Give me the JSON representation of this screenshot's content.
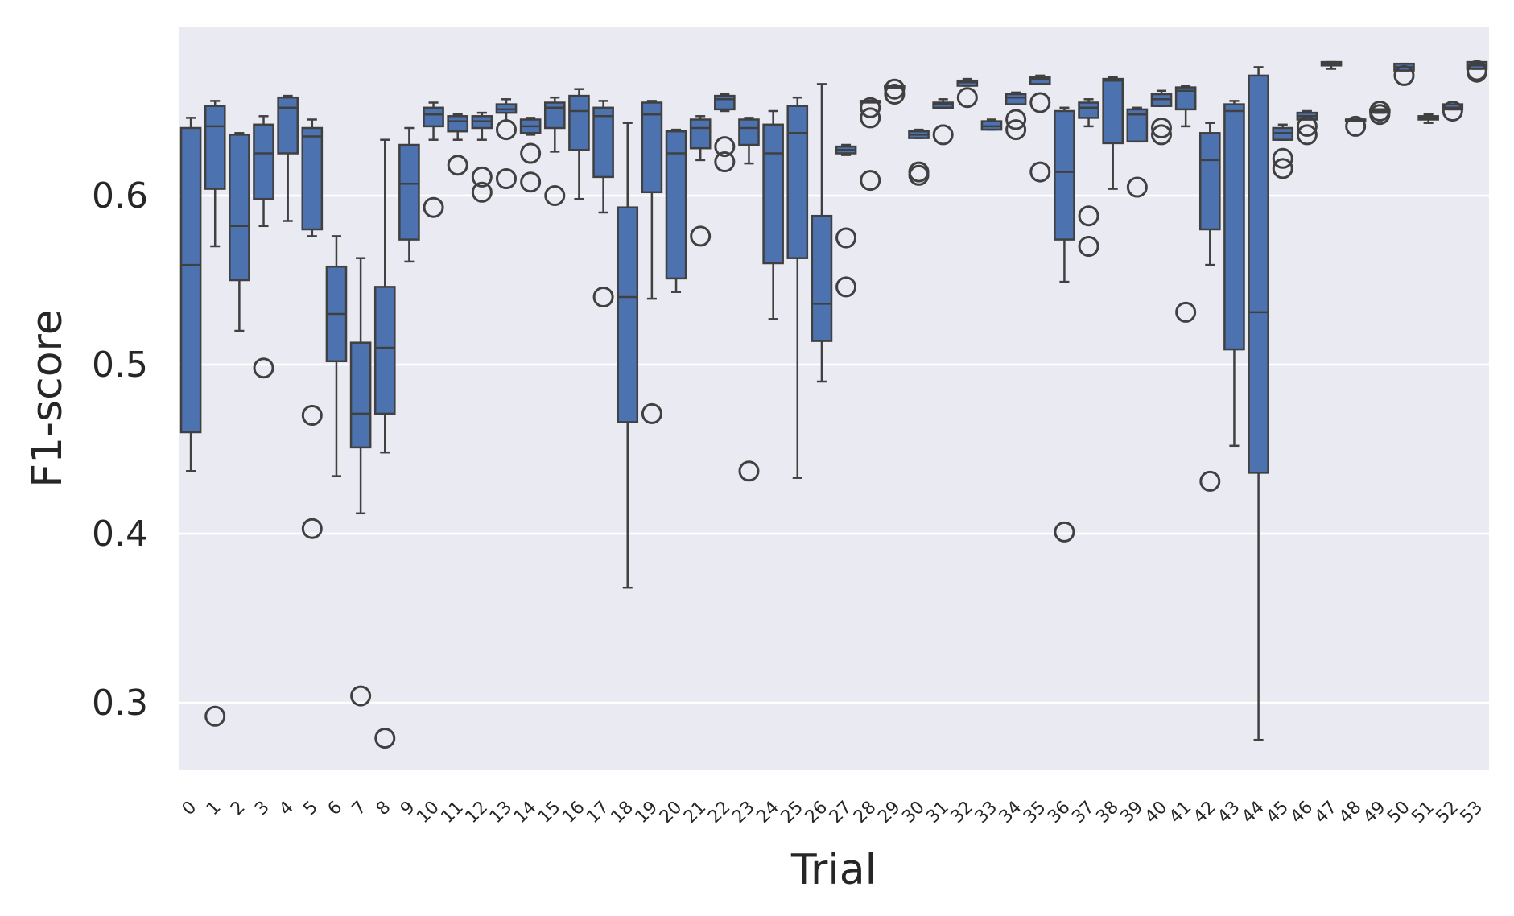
{
  "chart_data": {
    "type": "box",
    "title": "",
    "xlabel": "Trial",
    "ylabel": "F1-score",
    "ylim": [
      0.26,
      0.7
    ],
    "yticks": [
      0.3,
      0.4,
      0.5,
      0.6
    ],
    "ytick_labels": [
      "0.3",
      "0.4",
      "0.5",
      "0.6"
    ],
    "grid": "horizontal",
    "colors": {
      "background": "#eaeaf2",
      "box_fill": "#4c72b0",
      "line": "#404040",
      "grid": "#ffffff"
    },
    "categories": [
      "0",
      "1",
      "2",
      "3",
      "4",
      "5",
      "6",
      "7",
      "8",
      "9",
      "10",
      "11",
      "12",
      "13",
      "14",
      "15",
      "16",
      "17",
      "18",
      "19",
      "20",
      "21",
      "22",
      "23",
      "24",
      "25",
      "26",
      "27",
      "28",
      "29",
      "30",
      "31",
      "32",
      "33",
      "34",
      "35",
      "36",
      "37",
      "38",
      "39",
      "40",
      "41",
      "42",
      "43",
      "44",
      "45",
      "46",
      "47",
      "48",
      "49",
      "50",
      "51",
      "52",
      "53"
    ],
    "boxes": [
      {
        "trial": "0",
        "whislo": 0.437,
        "q1": 0.46,
        "med": 0.559,
        "q3": 0.64,
        "whishi": 0.646,
        "fliers": []
      },
      {
        "trial": "1",
        "whislo": 0.57,
        "q1": 0.604,
        "med": 0.641,
        "q3": 0.653,
        "whishi": 0.656,
        "fliers": [
          0.292
        ]
      },
      {
        "trial": "2",
        "whislo": 0.52,
        "q1": 0.55,
        "med": 0.582,
        "q3": 0.636,
        "whishi": 0.637,
        "fliers": []
      },
      {
        "trial": "3",
        "whislo": 0.582,
        "q1": 0.598,
        "med": 0.625,
        "q3": 0.642,
        "whishi": 0.647,
        "fliers": [
          0.498
        ]
      },
      {
        "trial": "4",
        "whislo": 0.585,
        "q1": 0.625,
        "med": 0.652,
        "q3": 0.658,
        "whishi": 0.659,
        "fliers": []
      },
      {
        "trial": "5",
        "whislo": 0.576,
        "q1": 0.58,
        "med": 0.635,
        "q3": 0.64,
        "whishi": 0.645,
        "fliers": [
          0.47,
          0.403
        ]
      },
      {
        "trial": "6",
        "whislo": 0.434,
        "q1": 0.502,
        "med": 0.53,
        "q3": 0.558,
        "whishi": 0.576,
        "fliers": []
      },
      {
        "trial": "7",
        "whislo": 0.412,
        "q1": 0.451,
        "med": 0.471,
        "q3": 0.513,
        "whishi": 0.563,
        "fliers": [
          0.304
        ]
      },
      {
        "trial": "8",
        "whislo": 0.448,
        "q1": 0.471,
        "med": 0.51,
        "q3": 0.546,
        "whishi": 0.633,
        "fliers": [
          0.279
        ]
      },
      {
        "trial": "9",
        "whislo": 0.561,
        "q1": 0.574,
        "med": 0.607,
        "q3": 0.63,
        "whishi": 0.64,
        "fliers": []
      },
      {
        "trial": "10",
        "whislo": 0.633,
        "q1": 0.641,
        "med": 0.648,
        "q3": 0.652,
        "whishi": 0.655,
        "fliers": [
          0.593
        ]
      },
      {
        "trial": "11",
        "whislo": 0.633,
        "q1": 0.638,
        "med": 0.644,
        "q3": 0.647,
        "whishi": 0.648,
        "fliers": [
          0.618
        ]
      },
      {
        "trial": "12",
        "whislo": 0.633,
        "q1": 0.64,
        "med": 0.644,
        "q3": 0.647,
        "whishi": 0.649,
        "fliers": [
          0.611,
          0.602
        ]
      },
      {
        "trial": "13",
        "whislo": 0.644,
        "q1": 0.649,
        "med": 0.651,
        "q3": 0.654,
        "whishi": 0.657,
        "fliers": [
          0.639,
          0.61
        ]
      },
      {
        "trial": "14",
        "whislo": 0.636,
        "q1": 0.637,
        "med": 0.641,
        "q3": 0.645,
        "whishi": 0.646,
        "fliers": [
          0.625,
          0.608
        ]
      },
      {
        "trial": "15",
        "whislo": 0.626,
        "q1": 0.64,
        "med": 0.652,
        "q3": 0.655,
        "whishi": 0.658,
        "fliers": [
          0.6
        ]
      },
      {
        "trial": "16",
        "whislo": 0.598,
        "q1": 0.627,
        "med": 0.65,
        "q3": 0.659,
        "whishi": 0.663,
        "fliers": []
      },
      {
        "trial": "17",
        "whislo": 0.59,
        "q1": 0.611,
        "med": 0.647,
        "q3": 0.652,
        "whishi": 0.656,
        "fliers": [
          0.54
        ]
      },
      {
        "trial": "18",
        "whislo": 0.368,
        "q1": 0.466,
        "med": 0.54,
        "q3": 0.593,
        "whishi": 0.643,
        "fliers": []
      },
      {
        "trial": "19",
        "whislo": 0.539,
        "q1": 0.602,
        "med": 0.648,
        "q3": 0.655,
        "whishi": 0.656,
        "fliers": [
          0.471
        ]
      },
      {
        "trial": "20",
        "whislo": 0.543,
        "q1": 0.551,
        "med": 0.625,
        "q3": 0.638,
        "whishi": 0.639,
        "fliers": []
      },
      {
        "trial": "21",
        "whislo": 0.621,
        "q1": 0.628,
        "med": 0.64,
        "q3": 0.645,
        "whishi": 0.647,
        "fliers": [
          0.576
        ]
      },
      {
        "trial": "22",
        "whislo": 0.65,
        "q1": 0.651,
        "med": 0.657,
        "q3": 0.659,
        "whishi": 0.66,
        "fliers": [
          0.629,
          0.62
        ]
      },
      {
        "trial": "23",
        "whislo": 0.619,
        "q1": 0.63,
        "med": 0.64,
        "q3": 0.645,
        "whishi": 0.646,
        "fliers": [
          0.437
        ]
      },
      {
        "trial": "24",
        "whislo": 0.527,
        "q1": 0.56,
        "med": 0.625,
        "q3": 0.642,
        "whishi": 0.65,
        "fliers": []
      },
      {
        "trial": "25",
        "whislo": 0.433,
        "q1": 0.563,
        "med": 0.637,
        "q3": 0.653,
        "whishi": 0.658,
        "fliers": []
      },
      {
        "trial": "26",
        "whislo": 0.49,
        "q1": 0.514,
        "med": 0.536,
        "q3": 0.588,
        "whishi": 0.666,
        "fliers": []
      },
      {
        "trial": "27",
        "whislo": 0.624,
        "q1": 0.625,
        "med": 0.627,
        "q3": 0.629,
        "whishi": 0.63,
        "fliers": [
          0.575,
          0.546
        ]
      },
      {
        "trial": "28",
        "whislo": 0.656,
        "q1": 0.656,
        "med": 0.656,
        "q3": 0.656,
        "whishi": 0.656,
        "fliers": [
          0.652,
          0.646,
          0.609
        ]
      },
      {
        "trial": "29",
        "whislo": 0.664,
        "q1": 0.664,
        "med": 0.664,
        "q3": 0.665,
        "whishi": 0.665,
        "fliers": [
          0.66,
          0.663
        ]
      },
      {
        "trial": "30",
        "whislo": 0.634,
        "q1": 0.634,
        "med": 0.636,
        "q3": 0.638,
        "whishi": 0.639,
        "fliers": [
          0.614,
          0.612
        ]
      },
      {
        "trial": "31",
        "whislo": 0.652,
        "q1": 0.652,
        "med": 0.654,
        "q3": 0.655,
        "whishi": 0.657,
        "fliers": [
          0.636
        ]
      },
      {
        "trial": "32",
        "whislo": 0.665,
        "q1": 0.665,
        "med": 0.667,
        "q3": 0.668,
        "whishi": 0.669,
        "fliers": [
          0.658
        ]
      },
      {
        "trial": "33",
        "whislo": 0.639,
        "q1": 0.639,
        "med": 0.641,
        "q3": 0.644,
        "whishi": 0.645,
        "fliers": []
      },
      {
        "trial": "34",
        "whislo": 0.654,
        "q1": 0.654,
        "med": 0.658,
        "q3": 0.66,
        "whishi": 0.661,
        "fliers": [
          0.645,
          0.639
        ]
      },
      {
        "trial": "35",
        "whislo": 0.666,
        "q1": 0.666,
        "med": 0.669,
        "q3": 0.67,
        "whishi": 0.671,
        "fliers": [
          0.655,
          0.614
        ]
      },
      {
        "trial": "36",
        "whislo": 0.549,
        "q1": 0.574,
        "med": 0.614,
        "q3": 0.65,
        "whishi": 0.652,
        "fliers": [
          0.401
        ]
      },
      {
        "trial": "37",
        "whislo": 0.641,
        "q1": 0.646,
        "med": 0.652,
        "q3": 0.655,
        "whishi": 0.657,
        "fliers": [
          0.588,
          0.57
        ]
      },
      {
        "trial": "38",
        "whislo": 0.604,
        "q1": 0.631,
        "med": 0.668,
        "q3": 0.669,
        "whishi": 0.67,
        "fliers": []
      },
      {
        "trial": "39",
        "whislo": 0.632,
        "q1": 0.632,
        "med": 0.648,
        "q3": 0.651,
        "whishi": 0.652,
        "fliers": [
          0.605
        ]
      },
      {
        "trial": "40",
        "whislo": 0.653,
        "q1": 0.653,
        "med": 0.657,
        "q3": 0.66,
        "whishi": 0.662,
        "fliers": [
          0.64,
          0.636
        ]
      },
      {
        "trial": "41",
        "whislo": 0.641,
        "q1": 0.651,
        "med": 0.662,
        "q3": 0.664,
        "whishi": 0.665,
        "fliers": [
          0.531
        ]
      },
      {
        "trial": "42",
        "whislo": 0.559,
        "q1": 0.58,
        "med": 0.621,
        "q3": 0.637,
        "whishi": 0.643,
        "fliers": [
          0.431
        ]
      },
      {
        "trial": "43",
        "whislo": 0.452,
        "q1": 0.509,
        "med": 0.65,
        "q3": 0.654,
        "whishi": 0.656,
        "fliers": []
      },
      {
        "trial": "44",
        "whislo": 0.278,
        "q1": 0.436,
        "med": 0.531,
        "q3": 0.671,
        "whishi": 0.676,
        "fliers": []
      },
      {
        "trial": "45",
        "whislo": 0.633,
        "q1": 0.633,
        "med": 0.637,
        "q3": 0.64,
        "whishi": 0.642,
        "fliers": [
          0.622,
          0.616
        ]
      },
      {
        "trial": "46",
        "whislo": 0.645,
        "q1": 0.645,
        "med": 0.647,
        "q3": 0.649,
        "whishi": 0.65,
        "fliers": [
          0.641,
          0.636
        ]
      },
      {
        "trial": "47",
        "whislo": 0.675,
        "q1": 0.677,
        "med": 0.678,
        "q3": 0.679,
        "whishi": 0.679,
        "fliers": []
      },
      {
        "trial": "48",
        "whislo": 0.644,
        "q1": 0.644,
        "med": 0.645,
        "q3": 0.645,
        "whishi": 0.645,
        "fliers": [
          0.641
        ]
      },
      {
        "trial": "49",
        "whislo": 0.649,
        "q1": 0.649,
        "med": 0.65,
        "q3": 0.651,
        "whishi": 0.651,
        "fliers": [
          0.65,
          0.648
        ]
      },
      {
        "trial": "50",
        "whislo": 0.674,
        "q1": 0.674,
        "med": 0.676,
        "q3": 0.678,
        "whishi": 0.678,
        "fliers": [
          0.671
        ]
      },
      {
        "trial": "51",
        "whislo": 0.643,
        "q1": 0.645,
        "med": 0.646,
        "q3": 0.647,
        "whishi": 0.648,
        "fliers": []
      },
      {
        "trial": "52",
        "whislo": 0.651,
        "q1": 0.651,
        "med": 0.652,
        "q3": 0.654,
        "whishi": 0.654,
        "fliers": [
          0.65
        ]
      },
      {
        "trial": "53",
        "whislo": 0.675,
        "q1": 0.675,
        "med": 0.677,
        "q3": 0.679,
        "whishi": 0.679,
        "fliers": [
          0.674,
          0.673
        ]
      }
    ]
  }
}
